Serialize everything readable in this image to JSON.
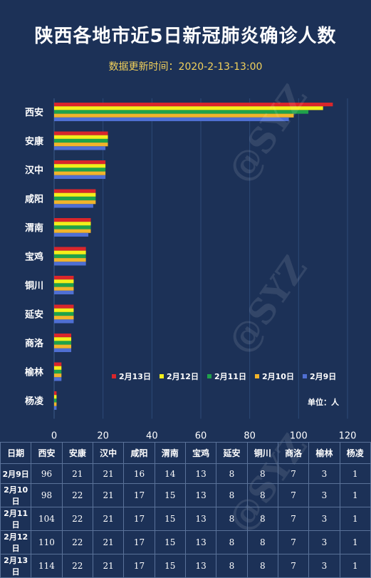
{
  "header": {
    "title": "陕西各地市近5日新冠肺炎确诊人数",
    "subtitle": "数据更新时间：2020-2-13-13:00"
  },
  "watermark": "@SYZ",
  "chart_data": {
    "type": "bar",
    "orientation": "horizontal",
    "categories": [
      "西安",
      "安康",
      "汉中",
      "咸阳",
      "渭南",
      "宝鸡",
      "铜川",
      "延安",
      "商洛",
      "榆林",
      "杨凌"
    ],
    "series": [
      {
        "name": "2月13日",
        "color": "#d9262b",
        "values": [
          114,
          22,
          21,
          17,
          15,
          13,
          8,
          8,
          7,
          3,
          1
        ]
      },
      {
        "name": "2月12日",
        "color": "#f4ef1a",
        "values": [
          110,
          22,
          21,
          17,
          15,
          13,
          8,
          8,
          7,
          3,
          1
        ]
      },
      {
        "name": "2月11日",
        "color": "#1fa24a",
        "values": [
          104,
          22,
          21,
          17,
          15,
          13,
          8,
          8,
          7,
          3,
          1
        ]
      },
      {
        "name": "2月10日",
        "color": "#f2b42a",
        "values": [
          98,
          22,
          21,
          17,
          15,
          13,
          8,
          8,
          7,
          3,
          1
        ]
      },
      {
        "name": "2月9日",
        "color": "#4f6fd3",
        "values": [
          96,
          21,
          21,
          16,
          14,
          13,
          8,
          8,
          7,
          3,
          1
        ]
      }
    ],
    "xlim": [
      0,
      120
    ],
    "xticks": [
      "0",
      "20",
      "40",
      "60",
      "80",
      "100",
      "120"
    ],
    "grid": true,
    "legend_position": "bottom-right",
    "unit_label": "单位：人"
  },
  "table": {
    "headers": [
      "日期",
      "西安",
      "安康",
      "汉中",
      "咸阳",
      "渭南",
      "宝鸡",
      "延安",
      "铜川",
      "商洛",
      "榆林",
      "杨凌"
    ],
    "rows": [
      [
        "2月9日",
        "96",
        "21",
        "21",
        "16",
        "14",
        "13",
        "8",
        "8",
        "7",
        "3",
        "1"
      ],
      [
        "2月10日",
        "98",
        "22",
        "21",
        "17",
        "15",
        "13",
        "8",
        "8",
        "7",
        "3",
        "1"
      ],
      [
        "2月11日",
        "104",
        "22",
        "21",
        "17",
        "15",
        "13",
        "8",
        "8",
        "7",
        "3",
        "1"
      ],
      [
        "2月12日",
        "110",
        "22",
        "21",
        "17",
        "15",
        "13",
        "8",
        "8",
        "7",
        "3",
        "1"
      ],
      [
        "2月13日",
        "114",
        "22",
        "21",
        "17",
        "15",
        "13",
        "8",
        "8",
        "7",
        "3",
        "1"
      ]
    ]
  }
}
